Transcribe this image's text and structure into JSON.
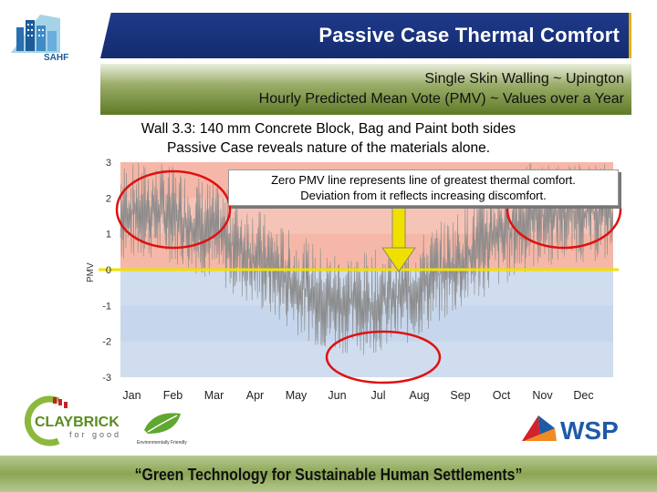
{
  "header": {
    "logo_text": "SAHF",
    "title": "Passive Case Thermal Comfort",
    "subtitle_line1": "Single Skin Walling ~ Upington",
    "subtitle_line2": "Hourly Predicted Mean Vote (PMV) ~ Values over a Year"
  },
  "description": {
    "line1": "Wall 3.3: 140 mm Concrete Block, Bag and Paint both sides",
    "line2": "Passive Case reveals nature of the materials alone."
  },
  "callout": {
    "line1": "Zero PMV line represents line of greatest thermal comfort.",
    "line2": "Deviation from it reflects increasing discomfort."
  },
  "chart_data": {
    "type": "line",
    "ylabel": "PMV",
    "ylim": [
      -3,
      3
    ],
    "yticks": [
      "3",
      "2",
      "1",
      "0",
      "-1",
      "-2",
      "-3"
    ],
    "categories": [
      "Jan",
      "Feb",
      "Mar",
      "Apr",
      "May",
      "Jun",
      "Jul",
      "Aug",
      "Sep",
      "Oct",
      "Nov",
      "Dec"
    ],
    "series": [
      {
        "values_monthly_envelope": {
          "max": [
            3,
            3,
            2.6,
            2.0,
            1.2,
            0.6,
            0.5,
            0.8,
            1.5,
            2.4,
            3,
            3
          ],
          "min": [
            0.2,
            0.3,
            -0.2,
            -0.9,
            -1.6,
            -2.3,
            -2.4,
            -2.1,
            -1.4,
            -0.7,
            0,
            0.2
          ]
        }
      }
    ],
    "bands": [
      {
        "from": 0,
        "to": 3,
        "color": "#f5b8a8"
      },
      {
        "from": -3,
        "to": 0,
        "color": "#c6d6ec"
      }
    ],
    "zero_line_color": "#f0e000"
  },
  "logos": {
    "claybrick_main": "CLAYBRICK",
    "claybrick_sub": "for good",
    "eco_caption": "Environmentally Friendly",
    "wsp": "WSP"
  },
  "footer": {
    "tagline": "“Green Technology for Sustainable Human Settlements”"
  },
  "colors": {
    "title_bar": "#1f3a8a",
    "subtitle_bar": "#5e7a26",
    "accent": "#e8b000",
    "circle": "#e01010",
    "arrow": "#f0e000"
  }
}
